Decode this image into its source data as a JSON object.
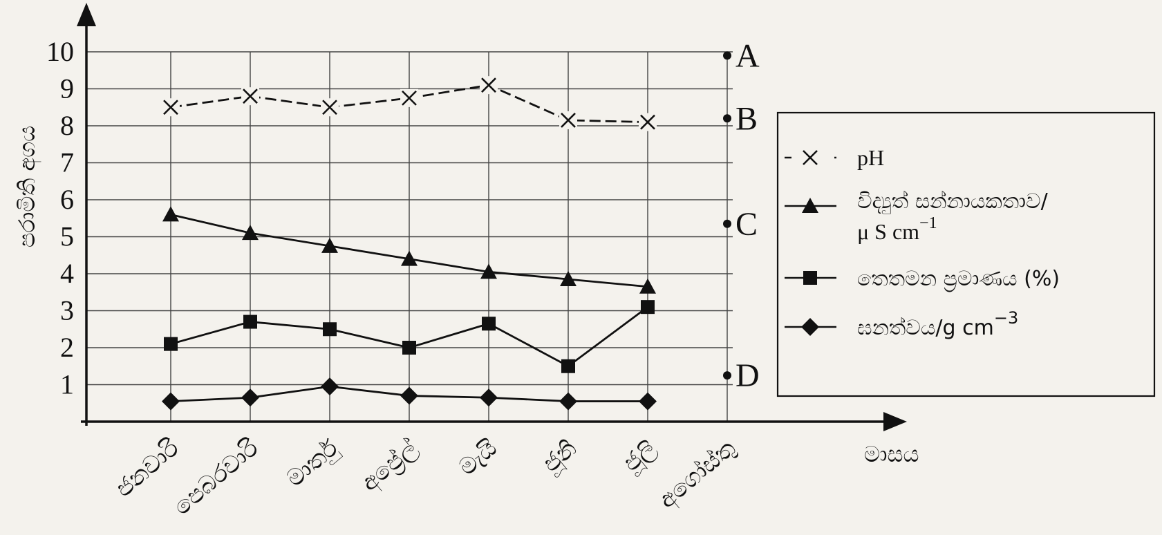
{
  "chart_data": {
    "type": "line",
    "ylabel": "පරාමිති අගය",
    "xlabel": "මාසය",
    "ylim": [
      0,
      10
    ],
    "yticks": [
      1,
      2,
      3,
      4,
      5,
      6,
      7,
      8,
      9,
      10
    ],
    "categories": [
      "ජනවාරි",
      "පෙබරවාරි",
      "මාර්තු",
      "අප්‍රේල්",
      "මැයි",
      "ජූනි",
      "ජූලි",
      "අගෝස්තු"
    ],
    "grid": true,
    "legend_position": "right",
    "series": [
      {
        "name": "pH",
        "marker": "x",
        "line_style": "dashed",
        "values": [
          8.5,
          8.8,
          8.5,
          8.75,
          9.1,
          8.15,
          8.1,
          null
        ]
      },
      {
        "name": "විද්‍යුත් සන්නායකතාව/ μS cm⁻¹",
        "name_line1": "විද්‍යුත් සන්නායකතාව/",
        "name_line2": "μ S cm",
        "name_sup": "−1",
        "marker": "triangle",
        "line_style": "solid",
        "values": [
          5.6,
          5.1,
          4.75,
          4.4,
          4.05,
          3.85,
          3.65,
          null
        ]
      },
      {
        "name": "තෙතමන ප්‍රමාණය (%)",
        "marker": "square",
        "line_style": "solid",
        "values": [
          2.1,
          2.7,
          2.5,
          2.0,
          2.65,
          1.5,
          3.1,
          null
        ]
      },
      {
        "name": "ඝනත්වය/g cm⁻³",
        "name_base": "ඝනත්වය/g cm",
        "name_sup": "−3",
        "marker": "diamond",
        "line_style": "solid",
        "values": [
          0.55,
          0.65,
          0.95,
          0.7,
          0.65,
          0.55,
          0.55,
          null
        ]
      }
    ],
    "annotations": [
      {
        "label": "A",
        "x": "අගෝස්තු",
        "y": 9.9
      },
      {
        "label": "B",
        "x": "අගෝස්තු",
        "y": 8.2
      },
      {
        "label": "C",
        "x": "අගෝස්තු",
        "y": 5.35
      },
      {
        "label": "D",
        "x": "අගෝස්තු",
        "y": 1.25
      }
    ]
  }
}
